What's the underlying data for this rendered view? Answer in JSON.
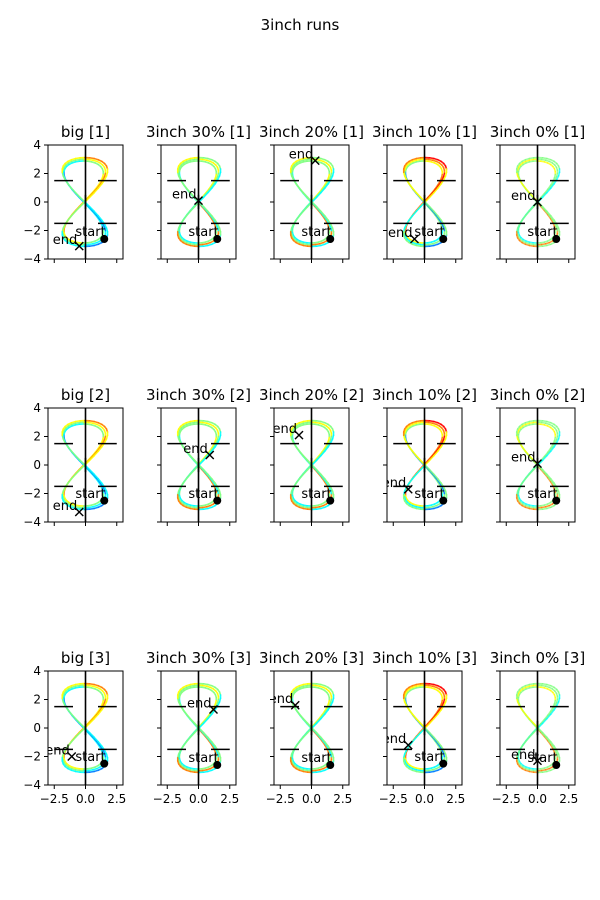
{
  "figure": {
    "suptitle": "3inch runs"
  },
  "colors": {
    "jet": [
      "#00007f",
      "#0000ff",
      "#007fff",
      "#00ffff",
      "#7fff7f",
      "#ffff00",
      "#ff7f00",
      "#ff0000",
      "#7f0000"
    ],
    "markers": "#000000"
  },
  "chart_data": {
    "type": "line",
    "layout": {
      "rows": 3,
      "cols": 5
    },
    "xlim": [
      -3,
      3
    ],
    "ylim": [
      -4,
      4
    ],
    "xticks": [
      -2.5,
      0.0,
      2.5
    ],
    "xtick_labels": [
      "−2.5",
      "0.0",
      "2.5"
    ],
    "yticks": [
      -4,
      -2,
      0,
      2,
      4
    ],
    "ytick_labels": [
      "−4",
      "−2",
      "0",
      "2",
      "4"
    ],
    "gates": [
      {
        "cross_x": 0,
        "cross_y": 1.5,
        "x_range": [
          -2.5,
          2.5
        ],
        "y_range": [
          -0.5,
          4.0
        ]
      },
      {
        "cross_x": 0,
        "cross_y": -1.5,
        "x_range": [
          -2.5,
          2.5
        ],
        "y_range": [
          -4.0,
          0.5
        ]
      }
    ],
    "trajectory_shape": "figure-eight",
    "start_label": "start",
    "end_label": "end",
    "panels": [
      {
        "title": "big [1]",
        "start": [
          1.5,
          -2.6
        ],
        "end": [
          -0.5,
          -3.1
        ],
        "style": "big"
      },
      {
        "title": "3inch 30% [1]",
        "start": [
          1.5,
          -2.6
        ],
        "end": [
          0.0,
          0.1
        ],
        "style": "mid"
      },
      {
        "title": "3inch 20% [1]",
        "start": [
          1.5,
          -2.6
        ],
        "end": [
          0.3,
          2.9
        ],
        "style": "mid"
      },
      {
        "title": "3inch 10% [1]",
        "start": [
          1.5,
          -2.6
        ],
        "end": [
          -0.8,
          -2.6
        ],
        "style": "mixed"
      },
      {
        "title": "3inch 0% [1]",
        "start": [
          1.5,
          -2.6
        ],
        "end": [
          0.0,
          0.0
        ],
        "style": "pale"
      },
      {
        "title": "big [2]",
        "start": [
          1.5,
          -2.5
        ],
        "end": [
          -0.5,
          -3.3
        ],
        "style": "big"
      },
      {
        "title": "3inch 30% [2]",
        "start": [
          1.5,
          -2.5
        ],
        "end": [
          0.9,
          0.7
        ],
        "style": "mid"
      },
      {
        "title": "3inch 20% [2]",
        "start": [
          1.5,
          -2.5
        ],
        "end": [
          -1.0,
          2.1
        ],
        "style": "mid"
      },
      {
        "title": "3inch 10% [2]",
        "start": [
          1.5,
          -2.5
        ],
        "end": [
          -1.3,
          -1.7
        ],
        "style": "mixed"
      },
      {
        "title": "3inch 0% [2]",
        "start": [
          1.5,
          -2.5
        ],
        "end": [
          0.0,
          0.1
        ],
        "style": "pale"
      },
      {
        "title": "big [3]",
        "start": [
          1.5,
          -2.5
        ],
        "end": [
          -1.1,
          -2.0
        ],
        "style": "big"
      },
      {
        "title": "3inch 30% [3]",
        "start": [
          1.5,
          -2.6
        ],
        "end": [
          1.2,
          1.3
        ],
        "style": "mid"
      },
      {
        "title": "3inch 20% [3]",
        "start": [
          1.5,
          -2.6
        ],
        "end": [
          -1.3,
          1.6
        ],
        "style": "mid"
      },
      {
        "title": "3inch 10% [3]",
        "start": [
          1.5,
          -2.5
        ],
        "end": [
          -1.3,
          -1.2
        ],
        "style": "mixed"
      },
      {
        "title": "3inch 0% [3]",
        "start": [
          1.5,
          -2.6
        ],
        "end": [
          0.0,
          -2.3
        ],
        "style": "pale"
      }
    ]
  }
}
